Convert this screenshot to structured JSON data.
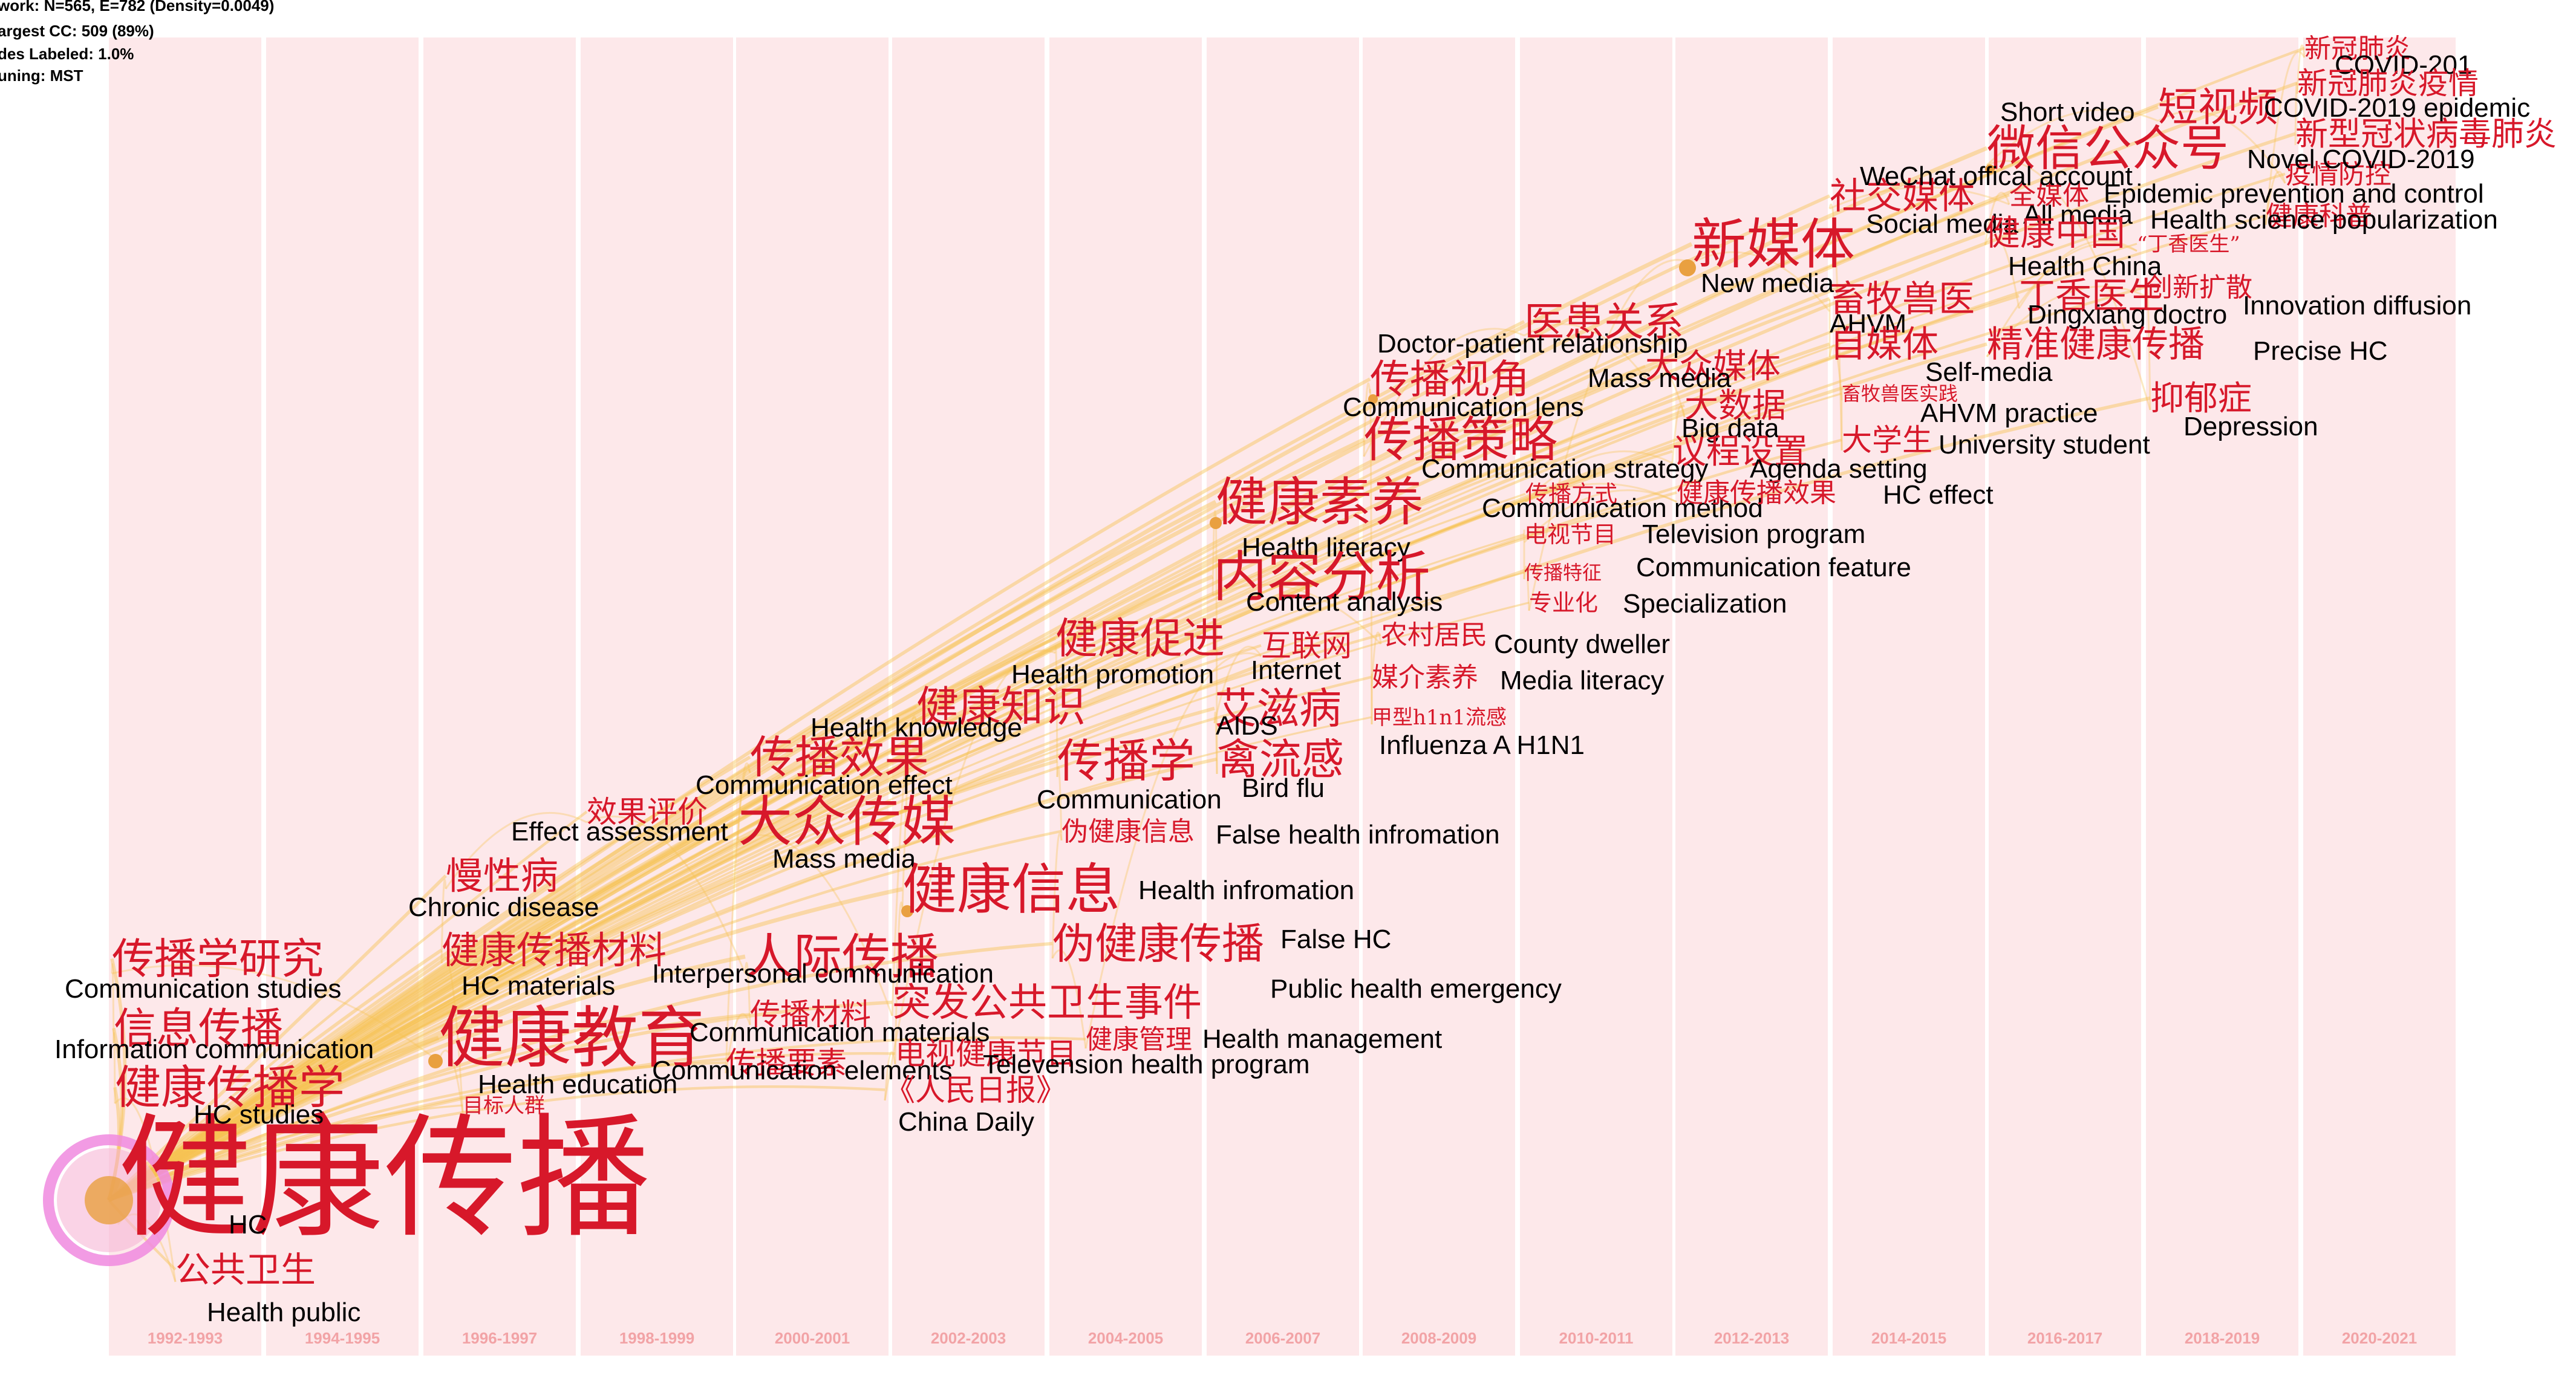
{
  "stats": [
    "work: N=565, E=782 (Density=0.0049)",
    "argest CC: 509 (89%)",
    "des Labeled: 1.0%",
    "uning: MST"
  ],
  "colors": {
    "band": "#fde8ea",
    "zh_label": "#d7182a",
    "en_label": "#000000",
    "year_label": "#f2a3a6",
    "link": "#f6c454",
    "node": "#e9a040",
    "hub_ring": "#f08adf"
  },
  "time_slices": [
    "1992-1993",
    "1994-1995",
    "1996-1997",
    "1998-1999",
    "2000-2001",
    "2002-2003",
    "2004-2005",
    "2006-2007",
    "2008-2009",
    "2010-2011",
    "2012-2013",
    "2014-2015",
    "2016-2017",
    "2018-2019",
    "2020-2021"
  ],
  "keywords": [
    {
      "zh": "健康传播",
      "en": "HC",
      "weight": 6
    },
    {
      "zh": "公共卫生",
      "en": "Health public",
      "weight": 2
    },
    {
      "zh": "健康传播学",
      "en": "HC studies",
      "weight": 3
    },
    {
      "zh": "信息传播",
      "en": "Information communication",
      "weight": 3
    },
    {
      "zh": "传播学研究",
      "en": "Communication studies",
      "weight": 3
    },
    {
      "zh": "健康教育",
      "en": "Health education",
      "weight": 4
    },
    {
      "zh": "目标人群",
      "en": "",
      "weight": 1
    },
    {
      "zh": "健康传播材料",
      "en": "HC materials",
      "weight": 3
    },
    {
      "zh": "慢性病",
      "en": "Chronic disease",
      "weight": 3
    },
    {
      "zh": "效果评价",
      "en": "Effect assessment",
      "weight": 2
    },
    {
      "zh": "人际传播",
      "en": "Interpersonal communication",
      "weight": 4
    },
    {
      "zh": "传播材料",
      "en": "Communication materials",
      "weight": 2
    },
    {
      "zh": "传播要素",
      "en": "Communication elements",
      "weight": 2
    },
    {
      "zh": "传播效果",
      "en": "Communication effect",
      "weight": 3
    },
    {
      "zh": "大众传媒",
      "en": "Mass media",
      "weight": 4
    },
    {
      "zh": "突发公共卫生事件",
      "en": "Public health emergency",
      "weight": 3
    },
    {
      "zh": "健康知识",
      "en": "Health knowledge",
      "weight": 3
    },
    {
      "zh": "健康信息",
      "en": "Health infromation",
      "weight": 4
    },
    {
      "zh": "电视健康节目",
      "en": "Televension health program",
      "weight": 2
    },
    {
      "zh": "《人民日报》",
      "en": "China Daily",
      "weight": 2
    },
    {
      "zh": "健康促进",
      "en": "Health promotion",
      "weight": 3
    },
    {
      "zh": "传播学",
      "en": "Communication",
      "weight": 3
    },
    {
      "zh": "伪健康信息",
      "en": "False health infromation",
      "weight": 2
    },
    {
      "zh": "伪健康传播",
      "en": "False HC",
      "weight": 3
    },
    {
      "zh": "健康管理",
      "en": "Health management",
      "weight": 2
    },
    {
      "zh": "互联网",
      "en": "Internet",
      "weight": 2
    },
    {
      "zh": "艾滋病",
      "en": "AIDS",
      "weight": 3
    },
    {
      "zh": "禽流感",
      "en": "Bird flu",
      "weight": 3
    },
    {
      "zh": "健康素养",
      "en": "Health literacy",
      "weight": 4
    },
    {
      "zh": "内容分析",
      "en": "Content analysis",
      "weight": 4
    },
    {
      "zh": "农村居民",
      "en": "County dweller",
      "weight": 2
    },
    {
      "zh": "媒介素养",
      "en": "Media literacy",
      "weight": 2
    },
    {
      "zh": "甲型h1n1流感",
      "en": "Influenza A H1N1",
      "weight": 1
    },
    {
      "zh": "传播视角",
      "en": "Communication lens",
      "weight": 3
    },
    {
      "zh": "传播策略",
      "en": "Communication strategy",
      "weight": 4
    },
    {
      "zh": "医患关系",
      "en": "Doctor-patient relationship",
      "weight": 3
    },
    {
      "zh": "大众媒体",
      "en": "Mass media",
      "weight": 2
    },
    {
      "zh": "大数据",
      "en": "Big data",
      "weight": 2
    },
    {
      "zh": "议程设置",
      "en": "Agenda setting",
      "weight": 2
    },
    {
      "zh": "传播方式",
      "en": "Communication method",
      "weight": 1
    },
    {
      "zh": "健康传播效果",
      "en": "HC effect",
      "weight": 2
    },
    {
      "zh": "电视节目",
      "en": "Television program",
      "weight": 1
    },
    {
      "zh": "传播特征",
      "en": "Communication feature",
      "weight": 1
    },
    {
      "zh": "专业化",
      "en": "Specialization",
      "weight": 1
    },
    {
      "zh": "新媒体",
      "en": "New media",
      "weight": 4
    },
    {
      "zh": "畜牧兽医",
      "en": "AHVM",
      "weight": 3
    },
    {
      "zh": "自媒体",
      "en": "Self-media",
      "weight": 3
    },
    {
      "zh": "畜牧兽医实践",
      "en": "AHVM practice",
      "weight": 1
    },
    {
      "zh": "大学生",
      "en": "University student",
      "weight": 2
    },
    {
      "zh": "社交媒体",
      "en": "Social media",
      "weight": 3
    },
    {
      "zh": "全媒体",
      "en": "All media",
      "weight": 2
    },
    {
      "zh": "健康中国",
      "en": "Health China",
      "weight": 3
    },
    {
      "zh": "丁香医生",
      "en": "Dingxiang doctro",
      "weight": 3
    },
    {
      "zh": "“丁香医生”",
      "en": "",
      "weight": 1
    },
    {
      "zh": "精准健康传播",
      "en": "Precise HC",
      "weight": 3
    },
    {
      "zh": "创新扩散",
      "en": "Innovation diffusion",
      "weight": 2
    },
    {
      "zh": "抑郁症",
      "en": "Depression",
      "weight": 3
    },
    {
      "zh": "微信公众号",
      "en": "WeChat offical account",
      "weight": 4
    },
    {
      "zh": "短视频",
      "en": "Short video",
      "weight": 3
    },
    {
      "zh": "疫情防控",
      "en": "Epidemic prevention and control",
      "weight": 2
    },
    {
      "zh": "健康科普",
      "en": "Health science popularization",
      "weight": 2
    },
    {
      "zh": "新冠肺炎",
      "en": "COVID-201",
      "weight": 2
    },
    {
      "zh": "新冠肺炎疫情",
      "en": "COVID-2019 epidemic",
      "weight": 3
    },
    {
      "zh": "新型冠状病毒肺炎",
      "en": "Novel COVID-2019",
      "weight": 3
    }
  ]
}
